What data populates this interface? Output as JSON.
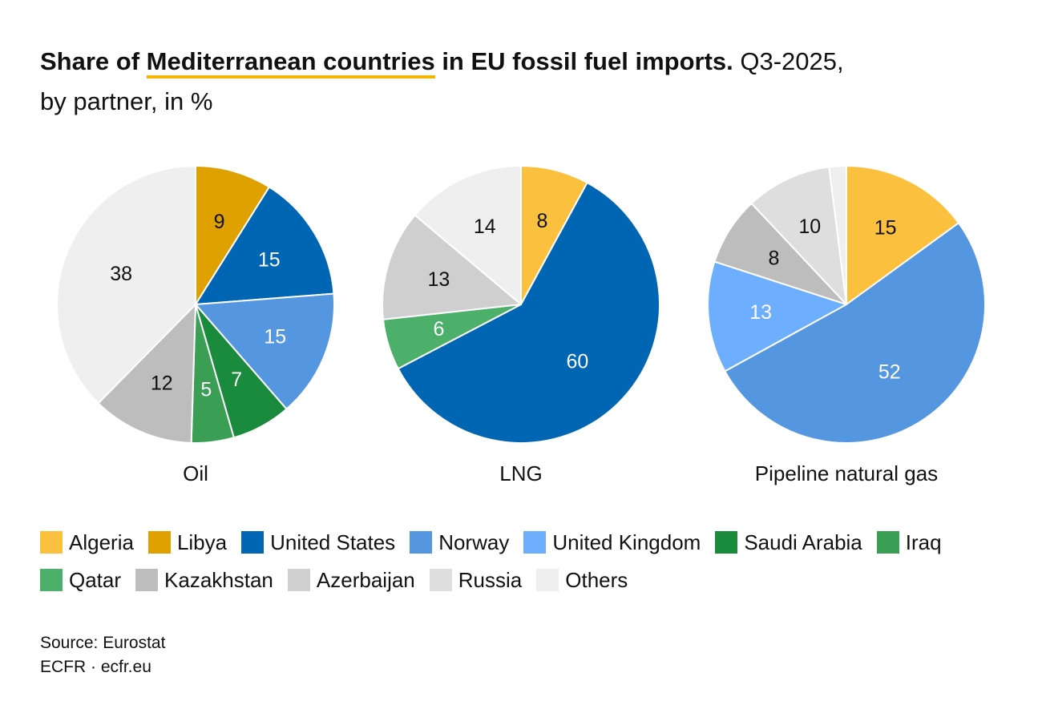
{
  "title": {
    "part1": "Share of ",
    "highlight": "Mediterranean countries",
    "part2": " in EU fossil fuel imports.",
    "part3": " Q3-2025,",
    "line2": "by partner, in %"
  },
  "colors": {
    "Algeria": "#fbc03d",
    "Libya": "#dea100",
    "United States": "#0066b3",
    "Norway": "#5596e0",
    "United Kingdom": "#6eaeff",
    "Saudi Arabia": "#1a8a3d",
    "Iraq": "#3a9e55",
    "Qatar": "#4caf6a",
    "Kazakhstan": "#bdbdbd",
    "Azerbaijan": "#cfcfcf",
    "Russia": "#dedede",
    "Others": "#efefef"
  },
  "legend": {
    "rows": [
      [
        "Algeria",
        "Libya",
        "United States",
        "Norway",
        "United Kingdom",
        "Saudi Arabia",
        "Iraq"
      ],
      [
        "Qatar",
        "Kazakhstan",
        "Azerbaijan",
        "Russia",
        "Others"
      ]
    ]
  },
  "chart_data": [
    {
      "type": "pie",
      "label": "Oil",
      "slices": [
        {
          "name": "Libya",
          "value": 9
        },
        {
          "name": "United States",
          "value": 15
        },
        {
          "name": "Norway",
          "value": 15
        },
        {
          "name": "Saudi Arabia",
          "value": 7
        },
        {
          "name": "Iraq",
          "value": 5
        },
        {
          "name": "Kazakhstan",
          "value": 12
        },
        {
          "name": "Others",
          "value": 38
        }
      ]
    },
    {
      "type": "pie",
      "label": "LNG",
      "slices": [
        {
          "name": "Algeria",
          "value": 8
        },
        {
          "name": "United States",
          "value": 60
        },
        {
          "name": "Qatar",
          "value": 6
        },
        {
          "name": "Azerbaijan",
          "value": 13
        },
        {
          "name": "Others",
          "value": 14
        }
      ]
    },
    {
      "type": "pie",
      "label": "Pipeline natural gas",
      "slices": [
        {
          "name": "Algeria",
          "value": 15
        },
        {
          "name": "Norway",
          "value": 52
        },
        {
          "name": "United Kingdom",
          "value": 13
        },
        {
          "name": "Kazakhstan",
          "value": 8
        },
        {
          "name": "Russia",
          "value": 10
        },
        {
          "name": "Others",
          "value": 2,
          "label": ""
        }
      ]
    }
  ],
  "footer": {
    "source": "Source: Eurostat",
    "credit": "ECFR · ecfr.eu"
  }
}
